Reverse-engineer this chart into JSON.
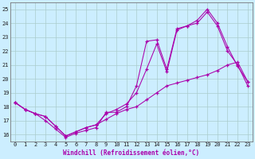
{
  "xlabel": "Windchill (Refroidissement éolien,°C)",
  "bg_color": "#cceeff",
  "grid_color": "#aacccc",
  "line_color": "#aa00aa",
  "xlim_min": -0.5,
  "xlim_max": 23.5,
  "ylim_min": 15.5,
  "ylim_max": 25.5,
  "yticks": [
    16,
    17,
    18,
    19,
    20,
    21,
    22,
    23,
    24,
    25
  ],
  "xticks": [
    0,
    1,
    2,
    3,
    4,
    5,
    6,
    7,
    8,
    9,
    10,
    11,
    12,
    13,
    14,
    15,
    16,
    17,
    18,
    19,
    20,
    21,
    22,
    23
  ],
  "line1_x": [
    0,
    1,
    2,
    3,
    4,
    5,
    6,
    7,
    8,
    9,
    10,
    11,
    12,
    13,
    14,
    15,
    16,
    17,
    18,
    19,
    20,
    21,
    22,
    23
  ],
  "line1_y": [
    18.3,
    17.8,
    17.5,
    17.0,
    16.4,
    15.8,
    16.1,
    16.3,
    16.5,
    17.6,
    17.6,
    18.0,
    19.5,
    22.7,
    22.8,
    20.7,
    23.6,
    23.8,
    24.2,
    25.0,
    24.0,
    22.3,
    20.9,
    19.8
  ],
  "line2_x": [
    0,
    1,
    2,
    3,
    4,
    5,
    6,
    7,
    8,
    9,
    10,
    11,
    12,
    13,
    14,
    15,
    16,
    17,
    18,
    19,
    20,
    21,
    22,
    23
  ],
  "line2_y": [
    18.3,
    17.8,
    17.5,
    17.3,
    16.6,
    15.9,
    16.2,
    16.5,
    16.7,
    17.5,
    17.8,
    18.2,
    19.0,
    20.7,
    22.5,
    20.5,
    23.5,
    23.8,
    24.0,
    24.8,
    23.8,
    22.0,
    21.0,
    19.5
  ],
  "line3_x": [
    0,
    1,
    2,
    3,
    4,
    5,
    6,
    7,
    8,
    9,
    10,
    11,
    12,
    13,
    14,
    15,
    16,
    17,
    18,
    19,
    20,
    21,
    22,
    23
  ],
  "line3_y": [
    18.3,
    17.8,
    17.5,
    17.3,
    16.6,
    15.9,
    16.2,
    16.5,
    16.7,
    17.1,
    17.5,
    17.8,
    18.0,
    18.5,
    19.0,
    19.5,
    19.7,
    19.9,
    20.1,
    20.3,
    20.6,
    21.0,
    21.2,
    19.8
  ]
}
